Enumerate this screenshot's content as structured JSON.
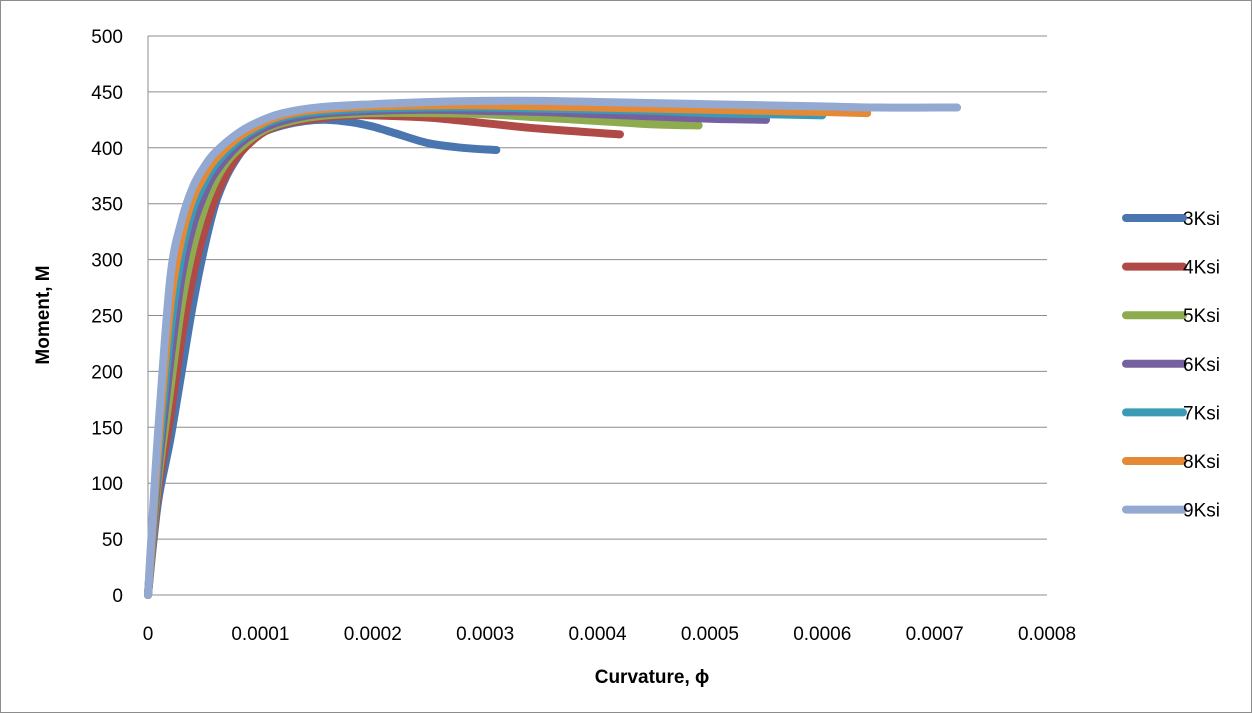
{
  "chart_data": {
    "type": "line",
    "title": "",
    "xlabel": "Curvature, ϕ",
    "ylabel": "Moment, M",
    "xlim": [
      0,
      0.0008
    ],
    "ylim": [
      0,
      500
    ],
    "x_ticks": [
      "0",
      "0.0001",
      "0.0002",
      "0.0003",
      "0.0004",
      "0.0005",
      "0.0006",
      "0.0007",
      "0.0008"
    ],
    "y_ticks": [
      "0",
      "50",
      "100",
      "150",
      "200",
      "250",
      "300",
      "350",
      "400",
      "450",
      "500"
    ],
    "grid": "horizontal",
    "legend_position": "right",
    "series": [
      {
        "name": "3Ksi",
        "color": "#4a76b0",
        "x": [
          0,
          5e-06,
          1e-05,
          2e-05,
          3e-05,
          4e-05,
          5e-05,
          6e-05,
          7e-05,
          8e-05,
          9e-05,
          0.0001,
          0.00012,
          0.00014,
          0.00016,
          0.00018,
          0.0002,
          0.00022,
          0.00025,
          0.00028,
          0.00031
        ],
        "y": [
          0,
          50,
          90,
          140,
          200,
          260,
          310,
          350,
          375,
          392,
          405,
          413,
          420,
          424,
          425,
          423,
          419,
          413,
          404,
          400,
          398
        ]
      },
      {
        "name": "4Ksi",
        "color": "#b04a46",
        "x": [
          0,
          5e-06,
          1e-05,
          2e-05,
          3e-05,
          4e-05,
          5e-05,
          6e-05,
          7e-05,
          8e-05,
          0.0001,
          0.00012,
          0.00015,
          0.00018,
          0.0002,
          0.00025,
          0.0003,
          0.00035,
          0.00042
        ],
        "y": [
          0,
          55,
          100,
          160,
          230,
          285,
          325,
          355,
          377,
          393,
          412,
          421,
          426,
          429,
          429,
          427,
          422,
          417,
          412
        ]
      },
      {
        "name": "5Ksi",
        "color": "#8eab4f",
        "x": [
          0,
          5e-06,
          1e-05,
          2e-05,
          3e-05,
          4e-05,
          5e-05,
          6e-05,
          7e-05,
          8e-05,
          0.0001,
          0.00012,
          0.00015,
          0.0002,
          0.00025,
          0.0003,
          0.00035,
          0.0004,
          0.00045,
          0.00049
        ],
        "y": [
          0,
          60,
          110,
          185,
          260,
          310,
          345,
          370,
          387,
          398,
          414,
          422,
          428,
          431,
          431,
          430,
          427,
          424,
          421,
          420
        ]
      },
      {
        "name": "6Ksi",
        "color": "#7560a0",
        "x": [
          0,
          5e-06,
          1e-05,
          2e-05,
          3e-05,
          4e-05,
          5e-05,
          6e-05,
          8e-05,
          0.0001,
          0.00012,
          0.00015,
          0.0002,
          0.00025,
          0.0003,
          0.00035,
          0.0004,
          0.00045,
          0.0005,
          0.00055
        ],
        "y": [
          0,
          65,
          120,
          210,
          285,
          330,
          358,
          378,
          402,
          416,
          424,
          430,
          433,
          434,
          433,
          432,
          430,
          428,
          426,
          425
        ]
      },
      {
        "name": "7Ksi",
        "color": "#3b9bb6",
        "x": [
          0,
          5e-06,
          1e-05,
          2e-05,
          3e-05,
          4e-05,
          5e-05,
          6e-05,
          8e-05,
          0.0001,
          0.00012,
          0.00015,
          0.0002,
          0.00025,
          0.0003,
          0.00035,
          0.0004,
          0.00045,
          0.0005,
          0.00055,
          0.0006
        ],
        "y": [
          0,
          70,
          130,
          235,
          305,
          345,
          368,
          385,
          406,
          419,
          427,
          432,
          435,
          436,
          436,
          435,
          434,
          433,
          431,
          430,
          429
        ]
      },
      {
        "name": "8Ksi",
        "color": "#e48a37",
        "x": [
          0,
          5e-06,
          1e-05,
          2e-05,
          3e-05,
          4e-05,
          5e-05,
          6e-05,
          8e-05,
          0.0001,
          0.00012,
          0.00015,
          0.0002,
          0.00025,
          0.0003,
          0.00035,
          0.0004,
          0.00045,
          0.0005,
          0.00055,
          0.0006,
          0.00064
        ],
        "y": [
          0,
          75,
          145,
          260,
          320,
          355,
          375,
          390,
          409,
          421,
          429,
          434,
          437,
          438,
          438,
          437,
          436,
          435,
          434,
          433,
          432,
          431
        ]
      },
      {
        "name": "9Ksi",
        "color": "#93a9d1",
        "x": [
          0,
          5e-06,
          1e-05,
          2e-05,
          3e-05,
          4e-05,
          5e-05,
          6e-05,
          8e-05,
          0.0001,
          0.00012,
          0.00015,
          0.0002,
          0.00025,
          0.0003,
          0.00035,
          0.0004,
          0.00045,
          0.0005,
          0.00055,
          0.0006,
          0.00065,
          0.0007,
          0.00072
        ],
        "y": [
          0,
          85,
          160,
          285,
          335,
          365,
          383,
          396,
          413,
          424,
          431,
          436,
          439,
          441,
          442,
          442,
          441,
          440,
          439,
          438,
          437,
          436,
          436,
          436
        ]
      }
    ]
  }
}
